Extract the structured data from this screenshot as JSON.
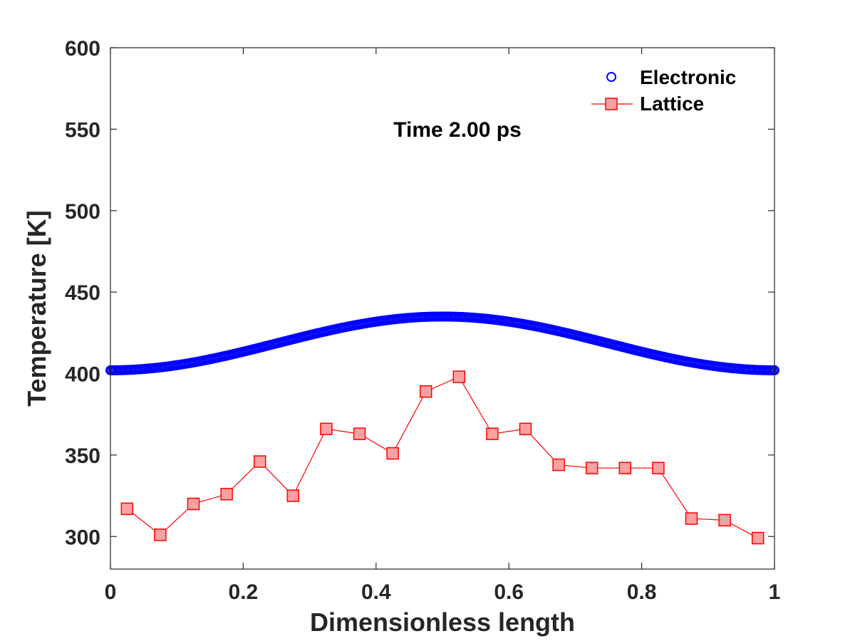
{
  "chart_data": {
    "type": "scatter",
    "title": "",
    "annotation": "Time 2.00 ps",
    "xlabel": "Dimensionless length",
    "ylabel": "Temperature [K]",
    "xlim": [
      0,
      1
    ],
    "ylim": [
      280,
      600
    ],
    "xticks": [
      0,
      0.2,
      0.4,
      0.6,
      0.8,
      1
    ],
    "xtick_labels": [
      "0",
      "0.2",
      "0.4",
      "0.6",
      "0.8",
      "1"
    ],
    "yticks": [
      300,
      350,
      400,
      450,
      500,
      550,
      600
    ],
    "ytick_labels": [
      "300",
      "350",
      "400",
      "450",
      "500",
      "550",
      "600"
    ],
    "grid": false,
    "legend_location": "top-right",
    "series": [
      {
        "name": "Electronic",
        "style": "circles",
        "color": "#0000ff",
        "model": {
          "kind": "cosine",
          "mean": 418.5,
          "amplitude": 16.5,
          "points": 400
        }
      },
      {
        "name": "Lattice",
        "style": "line-squares",
        "color": "#ff0000",
        "fill": "#f7a1a1",
        "x": [
          0.025,
          0.075,
          0.125,
          0.175,
          0.225,
          0.275,
          0.325,
          0.375,
          0.425,
          0.475,
          0.525,
          0.575,
          0.625,
          0.675,
          0.725,
          0.775,
          0.825,
          0.875,
          0.925,
          0.975
        ],
        "y": [
          317,
          301,
          320,
          326,
          346,
          325,
          366,
          363,
          351,
          389,
          398,
          363,
          366,
          344,
          342,
          342,
          342,
          311,
          310,
          299
        ]
      }
    ]
  }
}
